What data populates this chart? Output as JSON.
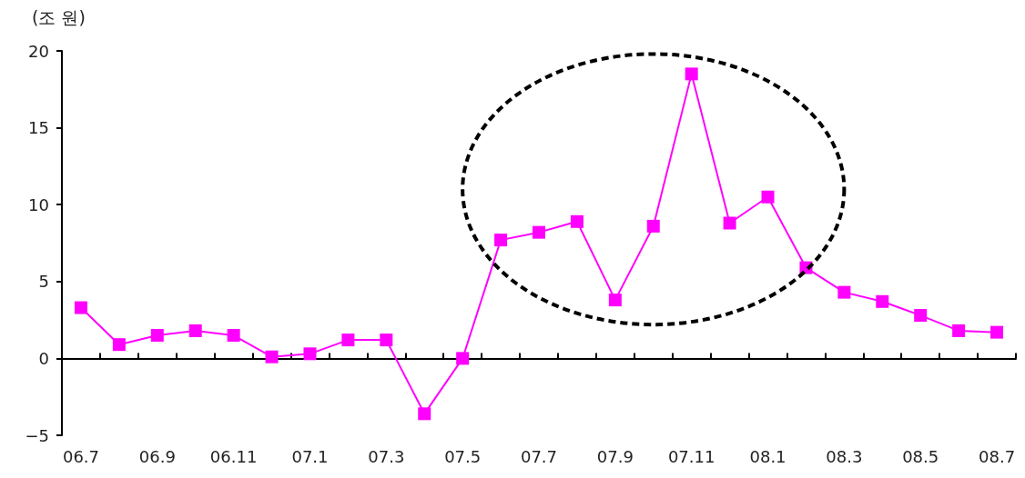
{
  "chart_data": {
    "type": "line",
    "ylabel": "(조 원)",
    "categories": [
      "06.7",
      null,
      "06.9",
      null,
      "06.11",
      null,
      "07.1",
      null,
      "07.3",
      null,
      "07.5",
      null,
      "07.7",
      null,
      "07.9",
      null,
      "07.11",
      null,
      "08.1",
      null,
      "08.3",
      null,
      "08.5",
      null,
      "08.7"
    ],
    "series": [
      {
        "color": "#ff00ff",
        "values": [
          3.3,
          0.9,
          1.5,
          1.8,
          1.5,
          0.1,
          0.3,
          1.2,
          1.2,
          -3.6,
          0,
          7.7,
          8.2,
          8.9,
          3.8,
          8.6,
          18.5,
          8.8,
          10.5,
          5.9,
          4.3,
          3.7,
          2.8,
          1.8,
          1.7
        ]
      }
    ],
    "ylim": [
      -5,
      20
    ],
    "yticks": [
      -5,
      0,
      5,
      10,
      15,
      20
    ],
    "marker": "square",
    "line_style": "solid"
  }
}
